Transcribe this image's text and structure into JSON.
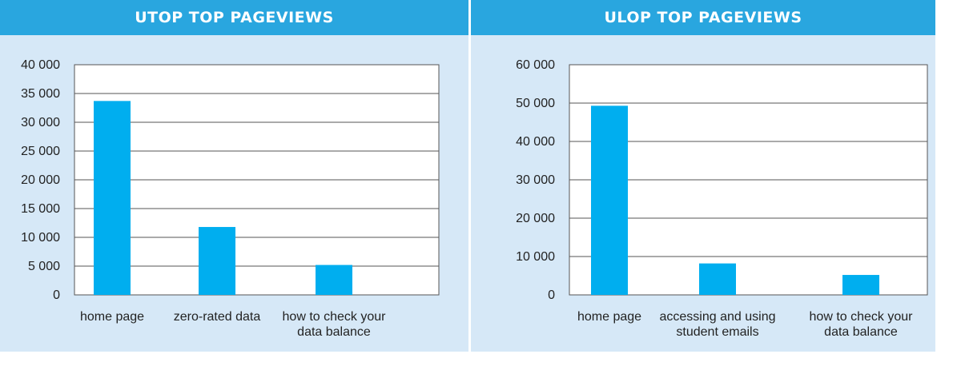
{
  "chart_data": [
    {
      "type": "bar",
      "title": "UTOP TOP PAGEVIEWS",
      "categories": [
        "home page",
        "zero-rated data",
        "how to check your data balance"
      ],
      "category_lines": [
        [
          "home page"
        ],
        [
          "zero-rated data"
        ],
        [
          "how to check your",
          "data balance"
        ]
      ],
      "values": [
        33700,
        11800,
        5200
      ],
      "ylim": [
        0,
        40000
      ],
      "yticks": [
        0,
        5000,
        10000,
        15000,
        20000,
        25000,
        30000,
        35000,
        40000
      ],
      "ytick_labels": [
        "0",
        "5 000",
        "10 000",
        "15 000",
        "20 000",
        "25 000",
        "30 000",
        "35 000",
        "40 000"
      ],
      "grid": true,
      "bar_color": "#00aeef"
    },
    {
      "type": "bar",
      "title": "ULOP TOP PAGEVIEWS",
      "categories": [
        "home page",
        "accessing and using student emails",
        "how to check your data balance"
      ],
      "category_lines": [
        [
          "home page"
        ],
        [
          "accessing and using",
          "student emails"
        ],
        [
          "how to check your",
          "data balance"
        ]
      ],
      "values": [
        49300,
        8200,
        5200
      ],
      "ylim": [
        0,
        60000
      ],
      "yticks": [
        0,
        10000,
        20000,
        30000,
        40000,
        50000,
        60000
      ],
      "ytick_labels": [
        "0",
        "10 000",
        "20 000",
        "30 000",
        "40 000",
        "50 000",
        "60 000"
      ],
      "grid": true,
      "bar_color": "#00aeef"
    }
  ],
  "colors": {
    "header": "#29a6df",
    "panel": "#d6e8f7",
    "bar": "#00aeef"
  }
}
